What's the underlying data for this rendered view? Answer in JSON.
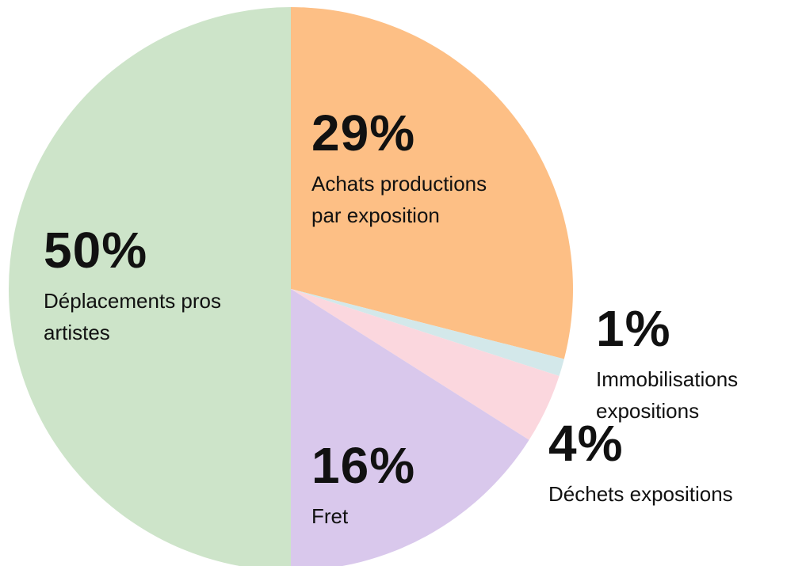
{
  "chart_data": {
    "type": "pie",
    "categories": [
      "Achats productions par exposition",
      "Immobilisations expositions",
      "Déchets expositions",
      "Fret",
      "Déplacements pros artistes"
    ],
    "values": [
      29,
      1,
      4,
      16,
      50
    ],
    "value_labels": [
      "29%",
      "1%",
      "4%",
      "16%",
      "50%"
    ],
    "colors": [
      "#fdbf85",
      "#d3e8ea",
      "#fbd7de",
      "#d9c8ec",
      "#cde4c9"
    ]
  }
}
